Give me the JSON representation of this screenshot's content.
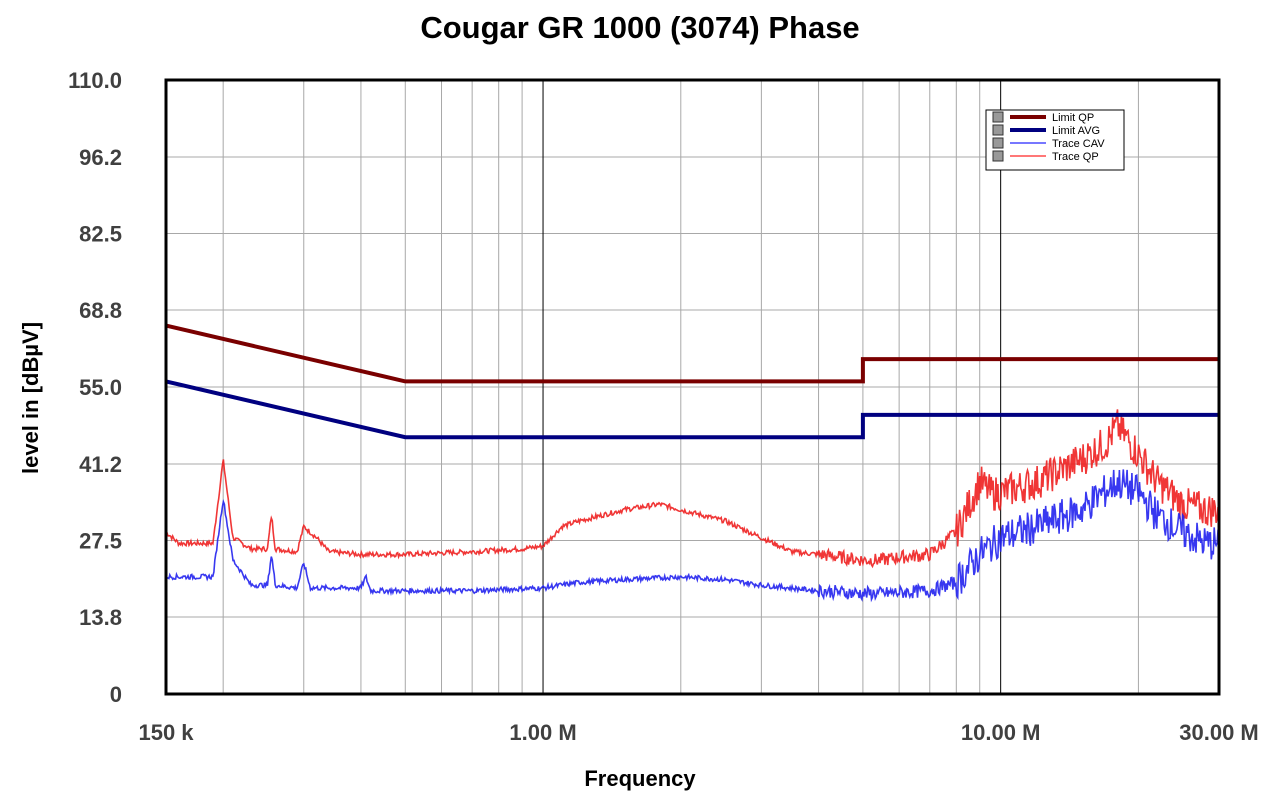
{
  "chart_data": {
    "type": "line",
    "title": "Cougar GR 1000 (3074) Phase",
    "xlabel": "Frequency",
    "ylabel": "level in [dBµV]",
    "x_scale": "log",
    "x_unit": "Hz",
    "xlim": [
      150000,
      30000000
    ],
    "ylim": [
      0,
      110
    ],
    "y_ticks": [
      0,
      13.8,
      27.5,
      41.2,
      55.0,
      68.8,
      82.5,
      96.2,
      110.0
    ],
    "y_tick_labels": [
      "0",
      "13.8",
      "27.5",
      "41.2",
      "55.0",
      "68.8",
      "82.5",
      "96.2",
      "110.0"
    ],
    "x_tick_values": [
      150000,
      1000000,
      10000000,
      30000000
    ],
    "x_tick_labels": [
      "150 k",
      "1.00 M",
      "10.00 M",
      "30.00 M"
    ],
    "grid": true,
    "legend_position": "top-right",
    "series": [
      {
        "name": "Limit QP",
        "color": "#7a0000",
        "style": "step",
        "x": [
          150000,
          500000,
          500000,
          5000000,
          5000000,
          30000000
        ],
        "y": [
          66,
          56,
          56,
          56,
          60,
          60
        ]
      },
      {
        "name": "Limit AVG",
        "color": "#000080",
        "style": "step",
        "x": [
          150000,
          500000,
          500000,
          5000000,
          5000000,
          30000000
        ],
        "y": [
          56,
          46,
          46,
          46,
          50,
          50
        ]
      },
      {
        "name": "Trace CAV",
        "color": "#2222ee",
        "style": "noisy",
        "x": [
          150000,
          170000,
          190000,
          200000,
          210000,
          230000,
          250000,
          255000,
          260000,
          290000,
          300000,
          310000,
          340000,
          400000,
          410000,
          420000,
          500000,
          700000,
          1000000,
          1200000,
          1500000,
          2000000,
          2500000,
          3000000,
          4000000,
          5000000,
          5500000,
          7000000,
          8000000,
          9000000,
          10000000,
          12000000,
          15000000,
          18000000,
          20000000,
          22000000,
          25000000,
          28000000,
          30000000
        ],
        "y": [
          21,
          21,
          21,
          35,
          24,
          19.5,
          19.5,
          25,
          19.5,
          19,
          23.5,
          19,
          19,
          19,
          21,
          18.5,
          18.5,
          18.5,
          19,
          20,
          20.5,
          21,
          20.5,
          19.5,
          18.5,
          18,
          18,
          18.5,
          20,
          25,
          28,
          30,
          33,
          38,
          36,
          32,
          29,
          27,
          27
        ]
      },
      {
        "name": "Trace QP",
        "color": "#ee2020",
        "style": "noisy",
        "x": [
          150000,
          160000,
          190000,
          200000,
          210000,
          230000,
          250000,
          255000,
          260000,
          290000,
          300000,
          320000,
          340000,
          400000,
          500000,
          700000,
          900000,
          1000000,
          1100000,
          1200000,
          1500000,
          1800000,
          2000000,
          2500000,
          3000000,
          3500000,
          4000000,
          5000000,
          5500000,
          6000000,
          7000000,
          8000000,
          9000000,
          9500000,
          10000000,
          12000000,
          15000000,
          17000000,
          18000000,
          20000000,
          22000000,
          25000000,
          28000000,
          30000000
        ],
        "y": [
          29,
          27,
          27,
          42,
          28,
          26,
          26,
          32,
          26,
          25.5,
          30,
          28,
          25.5,
          25,
          25,
          25.5,
          26,
          26.5,
          30,
          31,
          33,
          34,
          33,
          31,
          28,
          25.5,
          25,
          24,
          24,
          24.5,
          25,
          29,
          38,
          36,
          36,
          38,
          42,
          45,
          48,
          43,
          38,
          34,
          33,
          33
        ]
      }
    ]
  }
}
